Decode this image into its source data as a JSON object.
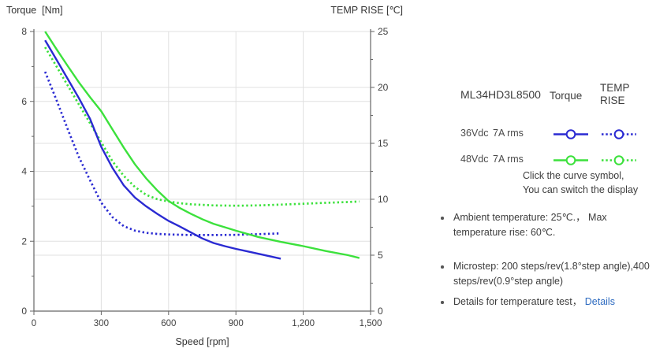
{
  "colors": {
    "blue": "#2a2ad2",
    "green": "#3ce13c",
    "grid": "#e0e0e0",
    "axis": "#666666",
    "tick_text": "#404040",
    "body_text": "#3d3d3d",
    "link": "#2e6bc0"
  },
  "legend": {
    "model": "ML34HD3L8500",
    "col_torque": "Torque",
    "col_temp": "TEMP RISE",
    "rows": [
      {
        "voltage": "36Vdc",
        "current": "7A rms"
      },
      {
        "voltage": "48Vdc",
        "current": "7A rms"
      }
    ],
    "hint_line1": "Click the curve symbol,",
    "hint_line2": "You can switch the display"
  },
  "notes": {
    "n1_line1": "Ambient temperature: 25℃.， Max",
    "n1_line2": "temperature rise: 60℃.",
    "n2_line1": "Microstep: 200 steps/rev(1.8°step angle),400",
    "n2_line2": "steps/rev(0.9°step angle)",
    "n3_text": "Details for temperature test，",
    "n3_link": "Details"
  },
  "chart_data": {
    "type": "line",
    "title_left": "Torque  [Nm]",
    "title_right": "TEMP RISE [℃]",
    "xlabel": "Speed [rpm]",
    "x_range": [
      0,
      1500
    ],
    "left_range": [
      0,
      8
    ],
    "right_range": [
      0,
      25
    ],
    "x_ticks": [
      0,
      300,
      600,
      900,
      1200,
      1500
    ],
    "x_tick_labels": [
      "0",
      "300",
      "600",
      "900",
      "1,200",
      "1,500"
    ],
    "left_ticks": [
      0,
      2,
      4,
      6,
      8
    ],
    "left_tick_labels": [
      "0",
      "2",
      "4",
      "6",
      "8"
    ],
    "right_ticks": [
      0,
      5,
      10,
      15,
      20,
      25
    ],
    "right_tick_labels": [
      "0",
      "5",
      "10",
      "15",
      "20",
      "25"
    ],
    "grid": true,
    "legend_position": "right-panel",
    "series": [
      {
        "name": "48Vdc 7A rms TEMP RISE",
        "axis": "right",
        "style": "dotted",
        "color": "#3ce13c",
        "points": [
          [
            50,
            23.6
          ],
          [
            100,
            21.9
          ],
          [
            150,
            20.2
          ],
          [
            200,
            18.5
          ],
          [
            250,
            16.8
          ],
          [
            300,
            15.1
          ],
          [
            350,
            13.4
          ],
          [
            400,
            12.1
          ],
          [
            450,
            11.1
          ],
          [
            500,
            10.4
          ],
          [
            550,
            10.0
          ],
          [
            600,
            9.8
          ],
          [
            650,
            9.65
          ],
          [
            700,
            9.55
          ],
          [
            800,
            9.45
          ],
          [
            900,
            9.42
          ],
          [
            1000,
            9.45
          ],
          [
            1100,
            9.52
          ],
          [
            1200,
            9.6
          ],
          [
            1300,
            9.68
          ],
          [
            1400,
            9.75
          ],
          [
            1450,
            9.8
          ]
        ]
      },
      {
        "name": "36Vdc 7A rms TEMP RISE",
        "axis": "right",
        "style": "dotted",
        "color": "#2a2ad2",
        "points": [
          [
            50,
            21.4
          ],
          [
            100,
            18.9
          ],
          [
            150,
            16.3
          ],
          [
            200,
            13.8
          ],
          [
            250,
            11.7
          ],
          [
            300,
            9.7
          ],
          [
            350,
            8.4
          ],
          [
            400,
            7.6
          ],
          [
            450,
            7.2
          ],
          [
            500,
            7.0
          ],
          [
            550,
            6.9
          ],
          [
            600,
            6.85
          ],
          [
            700,
            6.8
          ],
          [
            800,
            6.8
          ],
          [
            900,
            6.82
          ],
          [
            1000,
            6.88
          ],
          [
            1100,
            6.95
          ]
        ]
      },
      {
        "name": "48Vdc 7A rms Torque",
        "axis": "left",
        "style": "solid",
        "color": "#3ce13c",
        "points": [
          [
            50,
            8.0
          ],
          [
            100,
            7.5
          ],
          [
            150,
            7.02
          ],
          [
            200,
            6.55
          ],
          [
            250,
            6.12
          ],
          [
            300,
            5.72
          ],
          [
            350,
            5.2
          ],
          [
            400,
            4.68
          ],
          [
            450,
            4.2
          ],
          [
            500,
            3.8
          ],
          [
            550,
            3.45
          ],
          [
            600,
            3.15
          ],
          [
            650,
            2.95
          ],
          [
            700,
            2.78
          ],
          [
            750,
            2.63
          ],
          [
            800,
            2.5
          ],
          [
            850,
            2.4
          ],
          [
            900,
            2.3
          ],
          [
            1000,
            2.12
          ],
          [
            1100,
            1.98
          ],
          [
            1200,
            1.86
          ],
          [
            1300,
            1.72
          ],
          [
            1400,
            1.6
          ],
          [
            1450,
            1.52
          ]
        ]
      },
      {
        "name": "36Vdc 7A rms Torque",
        "axis": "left",
        "style": "solid",
        "color": "#2a2ad2",
        "points": [
          [
            50,
            7.75
          ],
          [
            100,
            7.2
          ],
          [
            150,
            6.65
          ],
          [
            200,
            6.1
          ],
          [
            250,
            5.5
          ],
          [
            300,
            4.7
          ],
          [
            350,
            4.1
          ],
          [
            400,
            3.6
          ],
          [
            450,
            3.25
          ],
          [
            500,
            3.0
          ],
          [
            550,
            2.78
          ],
          [
            600,
            2.58
          ],
          [
            650,
            2.42
          ],
          [
            700,
            2.25
          ],
          [
            750,
            2.08
          ],
          [
            800,
            1.95
          ],
          [
            850,
            1.86
          ],
          [
            900,
            1.78
          ],
          [
            950,
            1.71
          ],
          [
            1000,
            1.64
          ],
          [
            1050,
            1.57
          ],
          [
            1100,
            1.5
          ]
        ]
      }
    ]
  }
}
